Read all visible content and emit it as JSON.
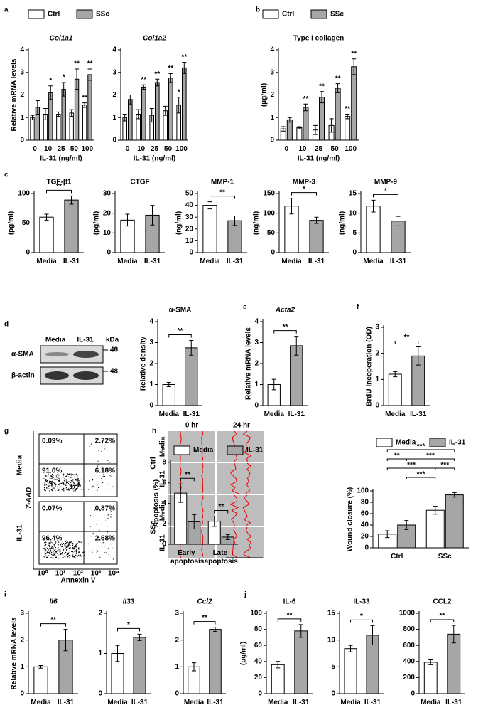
{
  "panel_labels": [
    "a",
    "b",
    "c",
    "d",
    "e",
    "f",
    "g",
    "h",
    "i",
    "j"
  ],
  "blot": {
    "lanes": [
      "Media",
      "IL-31"
    ],
    "unit": "kDa",
    "rows": [
      {
        "label": "α-SMA",
        "size": "48"
      },
      {
        "label": "β-actin",
        "size": "48"
      }
    ]
  },
  "flow": {
    "y_label": "7-AAD",
    "x_label": "Annexin V",
    "x_ticks": [
      "10⁰",
      "10¹",
      "10²",
      "10³",
      "10⁴"
    ],
    "rows": [
      {
        "label": "Media",
        "quadrants": [
          "0.09%",
          "2.72%",
          "91.0%",
          "6.18%"
        ]
      },
      {
        "label": "IL-31",
        "quadrants": [
          "0.07%",
          "0.87%",
          "96.4%",
          "2.68%"
        ]
      }
    ]
  },
  "wound": {
    "columns": [
      "0 hr",
      "24 hr"
    ],
    "groups": [
      {
        "label": "Ctrl",
        "rows": [
          "Media",
          "IL-31"
        ]
      },
      {
        "label": "SSc",
        "rows": [
          "Media",
          "IL-31"
        ]
      }
    ]
  },
  "chart_data": [
    {
      "type": "bar",
      "title": "Col1a1",
      "italic_title": true,
      "ylabel": "Relative mRNA levels",
      "xlabel": "IL-31 (ng/ml)",
      "legend": true,
      "categories": [
        "0",
        "10",
        "25",
        "50",
        "100"
      ],
      "ylim": [
        0,
        4
      ],
      "yticks": [
        0,
        1,
        2,
        3,
        4
      ],
      "series": [
        {
          "name": "Ctrl",
          "color": "#ffffff",
          "values": [
            1.0,
            1.15,
            1.15,
            1.2,
            1.55
          ],
          "errors": [
            0.1,
            0.25,
            0.1,
            0.15,
            0.1
          ],
          "annotations": [
            null,
            null,
            null,
            null,
            "**"
          ]
        },
        {
          "name": "SSc",
          "color": "#a6a6a6",
          "values": [
            1.45,
            2.1,
            2.25,
            2.7,
            2.9
          ],
          "errors": [
            0.3,
            0.3,
            0.3,
            0.45,
            0.25
          ],
          "annotations": [
            null,
            "*",
            "*",
            "**",
            "**"
          ]
        }
      ]
    },
    {
      "type": "bar",
      "title": "Col1a2",
      "italic_title": true,
      "xlabel": "IL-31 (ng/ml)",
      "categories": [
        "0",
        "10",
        "25",
        "50",
        "100"
      ],
      "ylim": [
        0,
        4
      ],
      "yticks": [
        0,
        1,
        2,
        3,
        4
      ],
      "series": [
        {
          "color": "#ffffff",
          "values": [
            1.0,
            1.15,
            1.1,
            1.3,
            1.55
          ],
          "errors": [
            0.15,
            0.2,
            0.3,
            0.2,
            0.35
          ],
          "annotations": [
            null,
            null,
            null,
            null,
            "*"
          ]
        },
        {
          "color": "#a6a6a6",
          "values": [
            1.8,
            2.35,
            2.55,
            2.75,
            3.2
          ],
          "errors": [
            0.2,
            0.1,
            0.15,
            0.2,
            0.25
          ],
          "annotations": [
            null,
            "**",
            "**",
            "**",
            "**"
          ]
        }
      ]
    },
    {
      "type": "bar",
      "title": "Type I collagen",
      "ylabel": "(μg/ml)",
      "xlabel": "IL-31 (ng/ml)",
      "legend": true,
      "categories": [
        "0",
        "10",
        "25",
        "50",
        "100"
      ],
      "ylim": [
        0,
        4
      ],
      "yticks": [
        0,
        1,
        2,
        3,
        4
      ],
      "series": [
        {
          "name": "Ctrl",
          "color": "#ffffff",
          "values": [
            0.5,
            0.55,
            0.45,
            0.65,
            1.05
          ],
          "errors": [
            0.1,
            0.05,
            0.2,
            0.3,
            0.1
          ],
          "annotations": [
            null,
            null,
            null,
            null,
            "**"
          ]
        },
        {
          "name": "SSc",
          "color": "#a6a6a6",
          "values": [
            0.9,
            1.45,
            1.9,
            2.3,
            3.25
          ],
          "errors": [
            0.1,
            0.15,
            0.25,
            0.2,
            0.35
          ],
          "annotations": [
            null,
            "**",
            "**",
            "**",
            "**"
          ]
        }
      ]
    },
    {
      "type": "bar",
      "title": "TGF-β1",
      "ylabel": "(pg/ml)",
      "categories": [
        "Media",
        "IL-31"
      ],
      "colors": [
        "#ffffff",
        "#a6a6a6"
      ],
      "values": [
        60,
        89
      ],
      "errors": [
        5,
        7
      ],
      "significance": "**",
      "ylim": [
        0,
        100
      ],
      "yticks": [
        0,
        50,
        100
      ]
    },
    {
      "type": "bar",
      "title": "CTGF",
      "ylabel": "(pg/ml)",
      "categories": [
        "Media",
        "IL-31"
      ],
      "colors": [
        "#ffffff",
        "#a6a6a6"
      ],
      "values": [
        16.5,
        19
      ],
      "errors": [
        3,
        5
      ],
      "ylim": [
        0,
        30
      ],
      "yticks": [
        0,
        10,
        20,
        30
      ]
    },
    {
      "type": "bar",
      "title": "MMP-1",
      "ylabel": "(ng/ml)",
      "categories": [
        "Media",
        "IL-31"
      ],
      "colors": [
        "#ffffff",
        "#a6a6a6"
      ],
      "values": [
        40,
        27
      ],
      "errors": [
        3,
        4
      ],
      "significance": "**",
      "ylim": [
        0,
        50
      ],
      "yticks": [
        0,
        10,
        20,
        30,
        40,
        50
      ]
    },
    {
      "type": "bar",
      "title": "MMP-3",
      "ylabel": "(ng/ml)",
      "categories": [
        "Media",
        "IL-31"
      ],
      "colors": [
        "#ffffff",
        "#a6a6a6"
      ],
      "values": [
        118,
        82
      ],
      "errors": [
        20,
        8
      ],
      "significance": "*",
      "ylim": [
        0,
        150
      ],
      "yticks": [
        0,
        50,
        100,
        150
      ]
    },
    {
      "type": "bar",
      "title": "MMP-9",
      "ylabel": "(ng/ml)",
      "categories": [
        "Media",
        "IL-31"
      ],
      "colors": [
        "#ffffff",
        "#a6a6a6"
      ],
      "values": [
        11.8,
        8.0
      ],
      "errors": [
        1.5,
        1.2
      ],
      "significance": "*",
      "ylim": [
        0,
        15
      ],
      "yticks": [
        0,
        5,
        10,
        15
      ]
    },
    {
      "type": "bar",
      "title": "α-SMA",
      "ylabel": "Relative density",
      "categories": [
        "Media",
        "IL-31"
      ],
      "colors": [
        "#ffffff",
        "#a6a6a6"
      ],
      "values": [
        1.0,
        2.75
      ],
      "errors": [
        0.1,
        0.35
      ],
      "significance": "**",
      "ylim": [
        0,
        4
      ],
      "yticks": [
        0,
        1,
        2,
        3,
        4
      ]
    },
    {
      "type": "bar",
      "title": "Acta2",
      "italic_title": true,
      "ylabel": "Relative mRNA levels",
      "categories": [
        "Media",
        "IL-31"
      ],
      "colors": [
        "#ffffff",
        "#a6a6a6"
      ],
      "values": [
        1.0,
        2.85
      ],
      "errors": [
        0.25,
        0.45
      ],
      "significance": "**",
      "ylim": [
        0,
        4
      ],
      "yticks": [
        0,
        1,
        2,
        3,
        4
      ]
    },
    {
      "type": "bar",
      "ylabel": "BrdU incoperation (OD)",
      "categories": [
        "Media",
        "IL-31"
      ],
      "colors": [
        "#ffffff",
        "#a6a6a6"
      ],
      "values": [
        1.2,
        1.9
      ],
      "errors": [
        0.1,
        0.35
      ],
      "significance": "**",
      "ylim": [
        0,
        3
      ],
      "yticks": [
        0,
        1,
        2,
        3
      ]
    },
    {
      "type": "bar",
      "ylabel": "Apoptosis (%)",
      "legend": true,
      "categories": [
        "Early apoptosis",
        "Late apoptosis"
      ],
      "ylim": [
        0,
        8
      ],
      "yticks": [
        0,
        2,
        4,
        6,
        8
      ],
      "series": [
        {
          "name": "Media",
          "color": "#ffffff",
          "values": [
            5.0,
            2.25
          ],
          "errors": [
            0.9,
            0.5
          ]
        },
        {
          "name": "IL-31",
          "color": "#a6a6a6",
          "values": [
            2.2,
            0.7
          ],
          "errors": [
            0.7,
            0.25
          ]
        }
      ],
      "significance": [
        "**",
        "**"
      ]
    },
    {
      "type": "bar",
      "ylabel": "Wound closure (%)",
      "legend": true,
      "categories": [
        "Ctrl",
        "SSc"
      ],
      "ylim": [
        0,
        100
      ],
      "yticks": [
        0,
        20,
        40,
        60,
        80,
        100
      ],
      "series": [
        {
          "name": "Media",
          "color": "#ffffff",
          "values": [
            24,
            66
          ],
          "errors": [
            6,
            7
          ]
        },
        {
          "name": "IL-31",
          "color": "#a6a6a6",
          "values": [
            40,
            93
          ],
          "errors": [
            8,
            4
          ]
        }
      ],
      "comparisons": [
        "***",
        "**",
        "***",
        "***",
        "***",
        "***"
      ]
    },
    {
      "type": "bar",
      "title": "Il6",
      "italic_title": true,
      "ylabel": "Relative mRNA levels",
      "categories": [
        "Media",
        "IL-31"
      ],
      "colors": [
        "#ffffff",
        "#a6a6a6"
      ],
      "values": [
        1.0,
        2.0
      ],
      "errors": [
        0.05,
        0.4
      ],
      "significance": "**",
      "ylim": [
        0,
        3
      ],
      "yticks": [
        0,
        1,
        2,
        3
      ]
    },
    {
      "type": "bar",
      "title": "Il33",
      "italic_title": true,
      "categories": [
        "Media",
        "IL-31"
      ],
      "colors": [
        "#ffffff",
        "#a6a6a6"
      ],
      "values": [
        1.0,
        1.4
      ],
      "errors": [
        0.2,
        0.08
      ],
      "significance": "*",
      "ylim": [
        0,
        2
      ],
      "yticks": [
        0,
        1,
        2
      ]
    },
    {
      "type": "bar",
      "title": "Ccl2",
      "italic_title": true,
      "categories": [
        "Media",
        "IL-31"
      ],
      "colors": [
        "#ffffff",
        "#a6a6a6"
      ],
      "values": [
        1.0,
        2.4
      ],
      "errors": [
        0.15,
        0.08
      ],
      "significance": "**",
      "ylim": [
        0,
        3
      ],
      "yticks": [
        0,
        1,
        2,
        3
      ]
    },
    {
      "type": "bar",
      "title": "IL-6",
      "ylabel": "(pg/ml)",
      "categories": [
        "Media",
        "IL-31"
      ],
      "colors": [
        "#ffffff",
        "#a6a6a6"
      ],
      "values": [
        36,
        78
      ],
      "errors": [
        4,
        8
      ],
      "significance": "**",
      "ylim": [
        0,
        100
      ],
      "yticks": [
        0,
        20,
        40,
        60,
        80,
        100
      ]
    },
    {
      "type": "bar",
      "title": "IL-33",
      "categories": [
        "Media",
        "IL-31"
      ],
      "colors": [
        "#ffffff",
        "#a6a6a6"
      ],
      "values": [
        8.4,
        10.9
      ],
      "errors": [
        0.6,
        1.8
      ],
      "significance": "*",
      "ylim": [
        0,
        15
      ],
      "yticks": [
        0,
        5,
        10,
        15
      ]
    },
    {
      "type": "bar",
      "title": "CCL2",
      "categories": [
        "Media",
        "IL-31"
      ],
      "colors": [
        "#ffffff",
        "#a6a6a6"
      ],
      "values": [
        390,
        740
      ],
      "errors": [
        30,
        110
      ],
      "significance": "**",
      "ylim": [
        0,
        1000
      ],
      "yticks": [
        0,
        200,
        400,
        600,
        800,
        1000
      ]
    }
  ]
}
